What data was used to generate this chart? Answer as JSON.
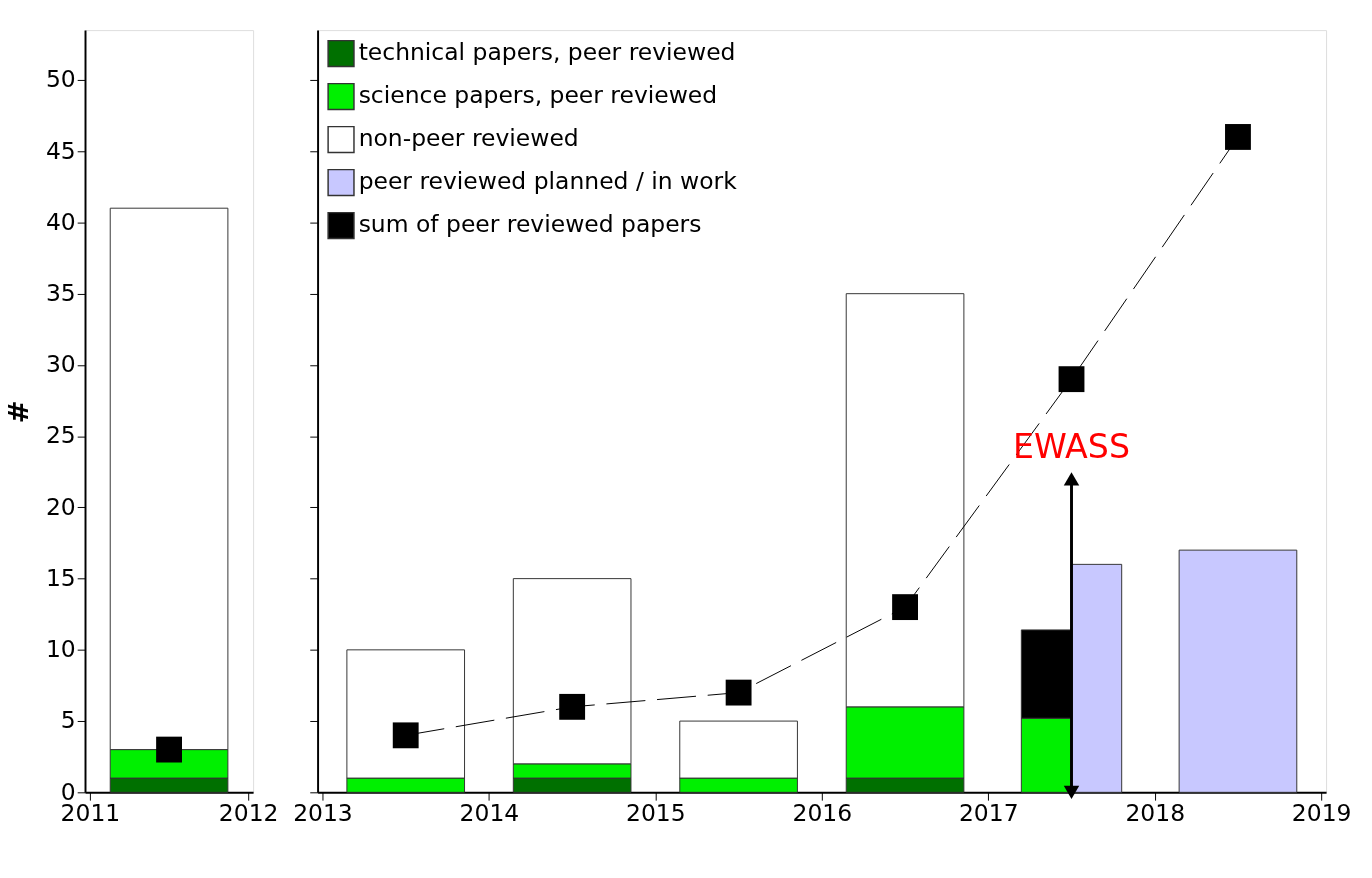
{
  "chart_data": [
    {
      "type": "bar",
      "ylabel": "#",
      "x": [
        2011.5
      ],
      "xlim": [
        2011,
        2012
      ],
      "xticks": [
        2011,
        2012
      ],
      "ylim": [
        0,
        53.5
      ],
      "yticks": [
        0,
        5,
        10,
        15,
        20,
        25,
        30,
        35,
        40,
        45,
        50
      ],
      "stacked": true,
      "legend": false,
      "grid": false,
      "series": [
        {
          "color": "#007000",
          "values": [
            1
          ]
        },
        {
          "color": "#00f000",
          "values": [
            2
          ]
        },
        {
          "color": "#ffffff",
          "values": [
            38
          ]
        },
        {
          "type": "line",
          "color": "#000000",
          "values": [
            3
          ],
          "marker": "square",
          "line_style": "dashed"
        }
      ]
    },
    {
      "type": "bar",
      "x": [
        2013.5,
        2014.5,
        2015.5,
        2016.5,
        2017.35,
        2017.65,
        2018.5
      ],
      "xlim": [
        2013,
        2019
      ],
      "xticks": [
        2013,
        2014,
        2015,
        2016,
        2017,
        2018,
        2019
      ],
      "ylim": [
        0,
        53.5
      ],
      "yticks": [
        0,
        5,
        10,
        15,
        20,
        25,
        30,
        35,
        40,
        45,
        50
      ],
      "tick_labels": "x",
      "stacked": true,
      "legend": "top left",
      "grid": false,
      "series": [
        {
          "name": "technical  papers, peer reviewed",
          "color": "#007000",
          "values": [
            null,
            1,
            null,
            1,
            null,
            null,
            null
          ]
        },
        {
          "name": "science papers, peer reviewed",
          "color": "#00f000",
          "values": [
            1,
            1,
            1,
            5,
            5.2,
            null,
            null
          ]
        },
        {
          "name": "non-peer reviewed",
          "color": "#ffffff",
          "values": [
            9,
            13,
            4,
            29,
            null,
            null,
            null
          ]
        },
        {
          "color": "#000000",
          "values": [
            null,
            null,
            null,
            null,
            6.2,
            null,
            null
          ]
        },
        {
          "name": "peer reviewed planned / in work",
          "color": "#c8c8ff",
          "values": [
            null,
            null,
            null,
            null,
            null,
            16,
            17
          ]
        },
        {
          "name": "sum of peer reviewed papers",
          "type": "line",
          "color": "#000000",
          "marker": "square",
          "line_style": "dashed",
          "x": [
            2013.5,
            2014.5,
            2015.5,
            2016.5,
            2017.5,
            2018.5
          ],
          "values": [
            4,
            6,
            7,
            13,
            29,
            46
          ]
        }
      ],
      "annotations": [
        {
          "text": "EWASS",
          "x": 2017.5,
          "y": 22
        }
      ]
    }
  ]
}
